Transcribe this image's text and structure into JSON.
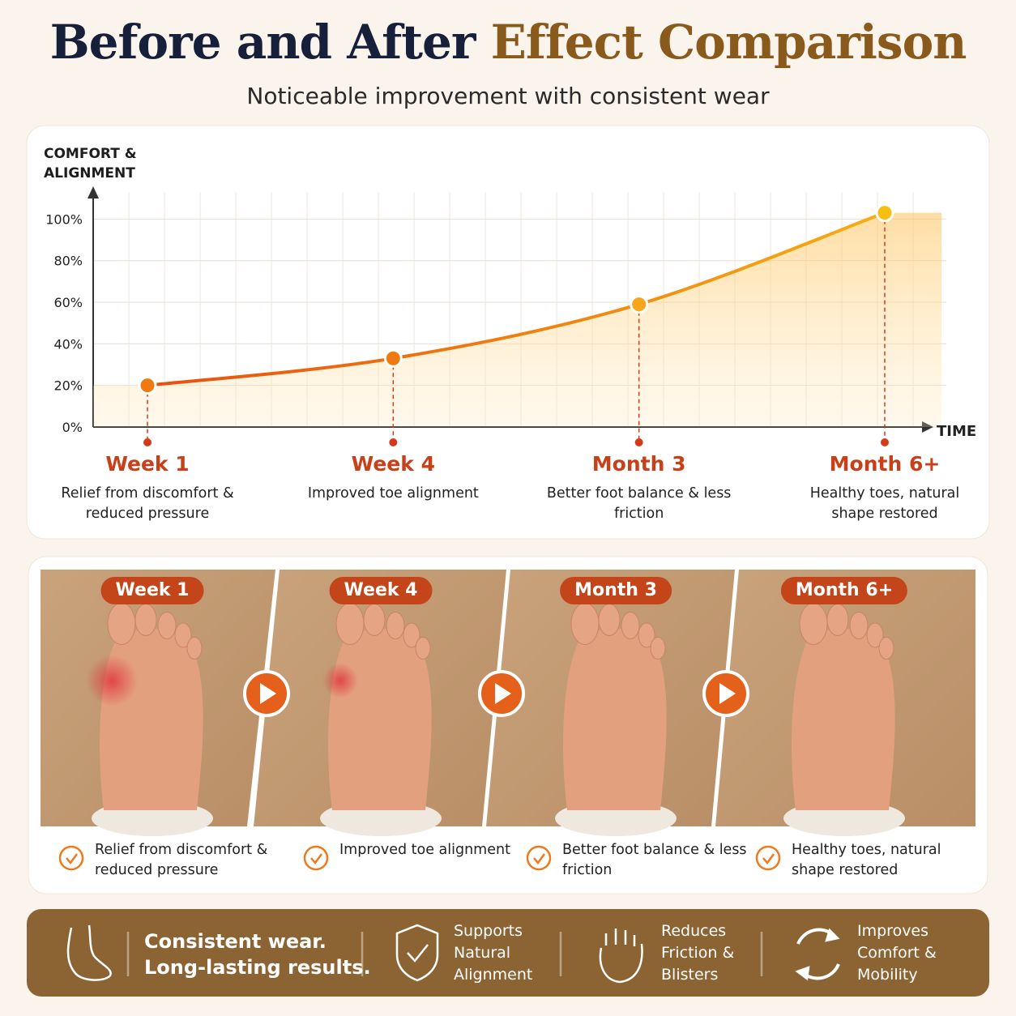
{
  "header": {
    "title_main": "Before and After",
    "title_accent": "Effect Comparison",
    "subtitle": "Noticeable improvement with consistent wear"
  },
  "chart_data": {
    "type": "line",
    "y_label": "COMFORT & ALIGNMENT",
    "x_label": "TIME",
    "categories": [
      "Week 1",
      "Week 4",
      "Month 3",
      "Month 6+"
    ],
    "descriptions": [
      "Relief from discomfort & reduced pressure",
      "Improved toe alignment",
      "Better foot balance & less friction",
      "Healthy toes, natural shape restored"
    ],
    "series": [
      {
        "name": "Comfort & Alignment",
        "color": "#f07a12",
        "values": [
          20,
          33,
          59,
          103
        ]
      }
    ],
    "ylim": [
      0,
      113
    ],
    "yticks": [
      {
        "value": 0,
        "label": "0%"
      },
      {
        "value": 20,
        "label": "20%"
      },
      {
        "value": 40,
        "label": "40%"
      },
      {
        "value": 60,
        "label": "60%"
      },
      {
        "value": 80,
        "label": "80%"
      },
      {
        "value": 100,
        "label": "100%"
      }
    ],
    "grid": true
  },
  "photos": [
    {
      "label": "Week 1",
      "caption": "Relief from discomfort & reduced pressure"
    },
    {
      "label": "Week 4",
      "caption": "Improved toe alignment"
    },
    {
      "label": "Month 3",
      "caption": "Better foot balance & less friction"
    },
    {
      "label": "Month 6+",
      "caption": "Healthy toes, natural shape restored"
    }
  ],
  "footer": {
    "slogan": "Consistent wear. Long-lasting results.",
    "features": [
      "Supports Natural Alignment",
      "Reduces Friction & Blisters",
      "Improves Comfort & Mobility"
    ]
  }
}
